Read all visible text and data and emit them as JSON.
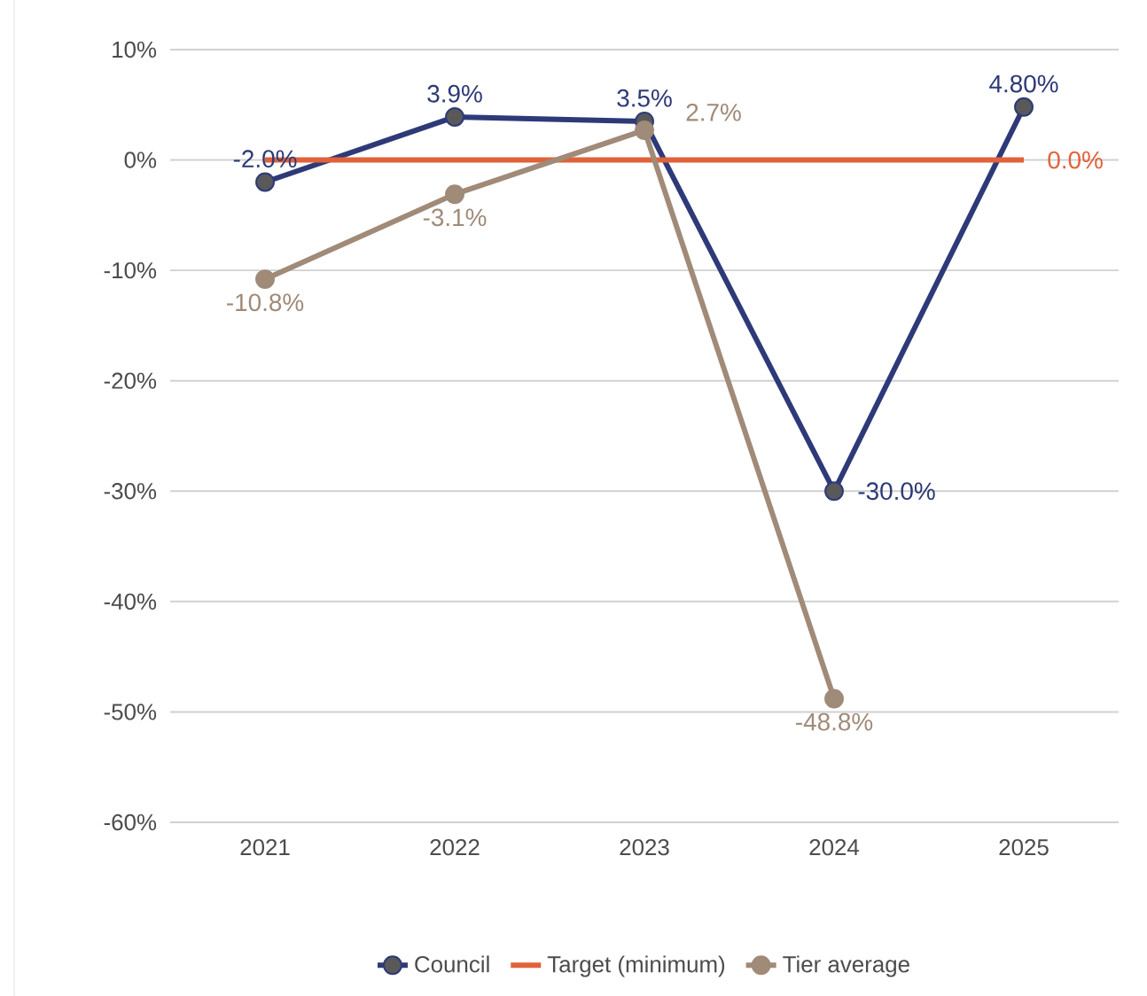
{
  "chart_data": {
    "type": "line",
    "categories": [
      "2021",
      "2022",
      "2023",
      "2024",
      "2025"
    ],
    "series": [
      {
        "name": "Council",
        "color": "#2e3a78",
        "marker": "circle",
        "values": [
          -2.0,
          3.9,
          3.5,
          -30.0,
          4.8
        ],
        "value_labels": [
          "-2.0%",
          "3.9%",
          "3.5%",
          "-30.0%",
          "4.80%"
        ]
      },
      {
        "name": "Target (minimum)",
        "color": "#e0623a",
        "marker": "none",
        "values": [
          0,
          0,
          0,
          0,
          0
        ],
        "value_labels": [
          null,
          null,
          null,
          null,
          "0.0%"
        ]
      },
      {
        "name": "Tier average",
        "color": "#a08a78",
        "marker": "circle",
        "values": [
          -10.8,
          -3.1,
          2.7,
          -48.8,
          null
        ],
        "value_labels": [
          "-10.8%",
          "-3.1%",
          "2.7%",
          "-48.8%",
          null
        ]
      }
    ],
    "ylim": [
      -60,
      10
    ],
    "yticks": [
      {
        "value": 10,
        "label": "10%"
      },
      {
        "value": 0,
        "label": "0%"
      },
      {
        "value": -10,
        "label": "-10%"
      },
      {
        "value": -20,
        "label": "-20%"
      },
      {
        "value": -30,
        "label": "-30%"
      },
      {
        "value": -40,
        "label": "-40%"
      },
      {
        "value": -50,
        "label": "-50%"
      },
      {
        "value": -60,
        "label": "-60%"
      }
    ],
    "grid": "y",
    "legend": "bottom",
    "line_style": "solid"
  }
}
